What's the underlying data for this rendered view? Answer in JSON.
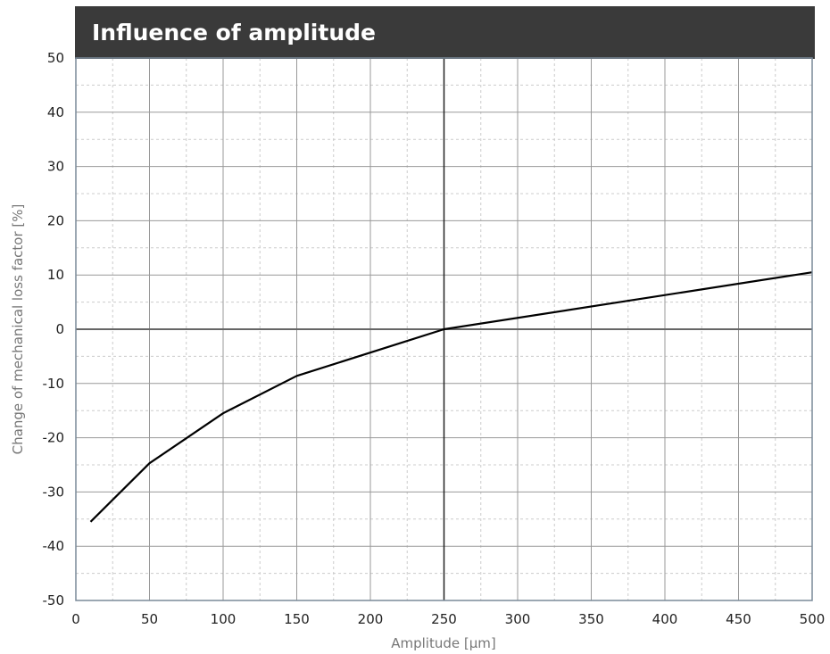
{
  "chart_data": {
    "type": "line",
    "title": "Influence of amplitude",
    "xlabel": "Amplitude [µm]",
    "ylabel": "Change of mechanical  loss factor [%]",
    "xlim": [
      0,
      500
    ],
    "ylim": [
      -50,
      50
    ],
    "x_ticks": [
      "0",
      "50",
      "100",
      "150",
      "200",
      "250",
      "300",
      "350",
      "400",
      "450",
      "500"
    ],
    "y_ticks": [
      "50",
      "40",
      "30",
      "20",
      "10",
      "0",
      "-10",
      "-20",
      "-30",
      "-40",
      "-50"
    ],
    "grid": true,
    "legend": "none",
    "reference_lines": {
      "x": 250,
      "y": 0
    },
    "series": [
      {
        "color": "#000000",
        "x": [
          10,
          50,
          100,
          150,
          250,
          500
        ],
        "y": [
          -35.5,
          -24.7,
          -15.5,
          -8.6,
          0,
          10.5
        ]
      }
    ]
  },
  "colors": {
    "title_bar": "#3a3a3a",
    "title_text": "#ffffff",
    "grid_major": "#999999",
    "grid_minor": "#cccccc",
    "axis_frame": "#7a8a99",
    "line": "#000000"
  }
}
